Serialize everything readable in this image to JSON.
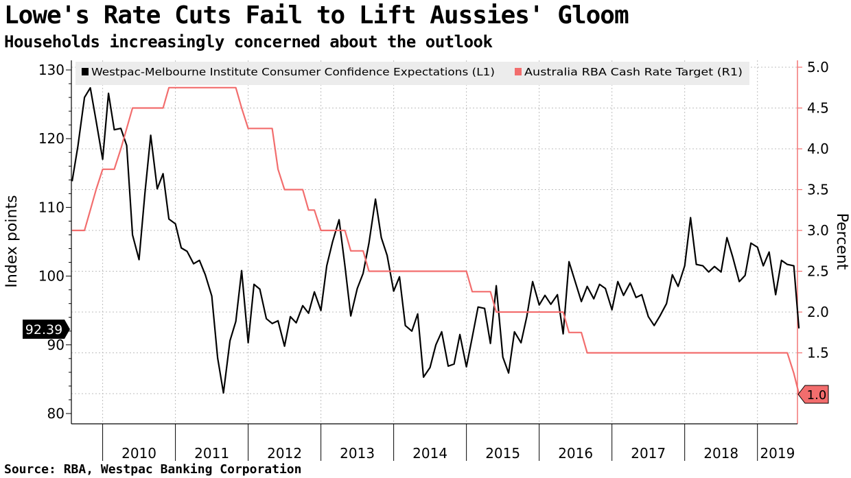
{
  "header": {
    "title": "Lowe's Rate Cuts Fail to Lift Aussies' Gloom",
    "subtitle": "Households increasingly concerned about the outlook"
  },
  "footer": {
    "source": "Source: RBA, Westpac Banking Corporation"
  },
  "colors": {
    "confidence": "#000000",
    "cash_rate": "#f26d6d",
    "grid": "#bdbdbd",
    "legend_bg": "#ececec"
  },
  "chart_data": {
    "type": "line",
    "title": "Lowe's Rate Cuts Fail to Lift Aussies' Gloom",
    "subtitle": "Households increasingly concerned about the outlook",
    "ylabel_left": "Index points",
    "ylabel_right": "Percent",
    "ylim_left": [
      78,
      130
    ],
    "ylim_right": [
      0.8,
      5.05
    ],
    "xlim": [
      2009.57,
      2019.55
    ],
    "yticks_left": [
      80,
      90,
      100,
      110,
      120,
      130
    ],
    "yticks_right": [
      "1.5",
      "2.0",
      "2.5",
      "3.0",
      "3.5",
      "4.0",
      "4.5",
      "5.0"
    ],
    "year_labels": [
      "2010",
      "2011",
      "2012",
      "2013",
      "2014",
      "2015",
      "2016",
      "2017",
      "2018",
      "2019"
    ],
    "grid": true,
    "legend_position": "top",
    "last_value_left": "92.39",
    "last_value_right": "1.0",
    "series": [
      {
        "name": "Westpac-Melbourne Institute Consumer Confidence Expectations  (L1)",
        "axis": "left",
        "points": [
          [
            2009.58,
            113.8
          ],
          [
            2009.66,
            118.9
          ],
          [
            2009.75,
            126.0
          ],
          [
            2009.83,
            127.4
          ],
          [
            2009.91,
            122.6
          ],
          [
            2010.0,
            117.0
          ],
          [
            2010.08,
            126.6
          ],
          [
            2010.16,
            121.3
          ],
          [
            2010.25,
            121.5
          ],
          [
            2010.33,
            119.0
          ],
          [
            2010.41,
            106.0
          ],
          [
            2010.5,
            102.4
          ],
          [
            2010.58,
            112.0
          ],
          [
            2010.66,
            120.5
          ],
          [
            2010.75,
            112.7
          ],
          [
            2010.83,
            114.9
          ],
          [
            2010.91,
            108.3
          ],
          [
            2011.0,
            107.6
          ],
          [
            2011.08,
            104.1
          ],
          [
            2011.16,
            103.6
          ],
          [
            2011.25,
            101.8
          ],
          [
            2011.33,
            102.3
          ],
          [
            2011.41,
            100.2
          ],
          [
            2011.5,
            97.1
          ],
          [
            2011.58,
            88.1
          ],
          [
            2011.66,
            83.0
          ],
          [
            2011.75,
            90.6
          ],
          [
            2011.83,
            93.4
          ],
          [
            2011.91,
            100.8
          ],
          [
            2012.0,
            90.3
          ],
          [
            2012.08,
            98.8
          ],
          [
            2012.16,
            98.1
          ],
          [
            2012.25,
            93.8
          ],
          [
            2012.33,
            93.1
          ],
          [
            2012.41,
            93.5
          ],
          [
            2012.5,
            89.8
          ],
          [
            2012.58,
            94.1
          ],
          [
            2012.66,
            93.2
          ],
          [
            2012.75,
            95.7
          ],
          [
            2012.83,
            94.6
          ],
          [
            2012.91,
            97.7
          ],
          [
            2013.0,
            95.0
          ],
          [
            2013.08,
            101.5
          ],
          [
            2013.16,
            105.0
          ],
          [
            2013.25,
            108.2
          ],
          [
            2013.33,
            101.5
          ],
          [
            2013.41,
            94.2
          ],
          [
            2013.5,
            98.2
          ],
          [
            2013.58,
            100.4
          ],
          [
            2013.66,
            104.8
          ],
          [
            2013.75,
            111.2
          ],
          [
            2013.83,
            105.6
          ],
          [
            2013.91,
            103.0
          ],
          [
            2014.0,
            97.8
          ],
          [
            2014.08,
            99.9
          ],
          [
            2014.16,
            92.8
          ],
          [
            2014.25,
            92.0
          ],
          [
            2014.33,
            94.5
          ],
          [
            2014.41,
            85.3
          ],
          [
            2014.5,
            86.7
          ],
          [
            2014.58,
            90.0
          ],
          [
            2014.66,
            91.9
          ],
          [
            2014.75,
            86.9
          ],
          [
            2014.83,
            87.2
          ],
          [
            2014.91,
            91.5
          ],
          [
            2015.0,
            86.8
          ],
          [
            2015.08,
            91.1
          ],
          [
            2015.16,
            95.5
          ],
          [
            2015.25,
            95.3
          ],
          [
            2015.33,
            90.2
          ],
          [
            2015.41,
            98.6
          ],
          [
            2015.5,
            88.2
          ],
          [
            2015.58,
            85.9
          ],
          [
            2015.66,
            91.9
          ],
          [
            2015.75,
            90.3
          ],
          [
            2015.83,
            94.1
          ],
          [
            2015.91,
            99.2
          ],
          [
            2016.0,
            95.8
          ],
          [
            2016.08,
            97.2
          ],
          [
            2016.16,
            95.9
          ],
          [
            2016.25,
            97.3
          ],
          [
            2016.33,
            91.6
          ],
          [
            2016.41,
            102.1
          ],
          [
            2016.5,
            99.0
          ],
          [
            2016.58,
            96.3
          ],
          [
            2016.66,
            98.5
          ],
          [
            2016.75,
            96.7
          ],
          [
            2016.83,
            98.8
          ],
          [
            2016.91,
            98.2
          ],
          [
            2017.0,
            95.1
          ],
          [
            2017.08,
            99.2
          ],
          [
            2017.16,
            97.2
          ],
          [
            2017.25,
            99.0
          ],
          [
            2017.33,
            96.9
          ],
          [
            2017.41,
            97.3
          ],
          [
            2017.5,
            94.1
          ],
          [
            2017.58,
            92.8
          ],
          [
            2017.66,
            94.2
          ],
          [
            2017.75,
            96.0
          ],
          [
            2017.83,
            100.2
          ],
          [
            2017.91,
            98.5
          ],
          [
            2018.0,
            101.5
          ],
          [
            2018.08,
            108.5
          ],
          [
            2018.16,
            101.7
          ],
          [
            2018.25,
            101.5
          ],
          [
            2018.33,
            100.6
          ],
          [
            2018.41,
            101.4
          ],
          [
            2018.5,
            100.6
          ],
          [
            2018.58,
            105.6
          ],
          [
            2018.66,
            102.8
          ],
          [
            2018.75,
            99.2
          ],
          [
            2018.83,
            100.1
          ],
          [
            2018.91,
            104.8
          ],
          [
            2019.0,
            104.2
          ],
          [
            2019.08,
            101.5
          ],
          [
            2019.16,
            103.5
          ],
          [
            2019.25,
            97.3
          ],
          [
            2019.33,
            102.3
          ],
          [
            2019.41,
            101.7
          ],
          [
            2019.5,
            101.5
          ],
          [
            2019.57,
            92.39
          ]
        ]
      },
      {
        "name": "Australia RBA Cash Rate Target  (R1)",
        "axis": "right",
        "points": [
          [
            2009.58,
            3.0
          ],
          [
            2009.75,
            3.0
          ],
          [
            2009.83,
            3.25
          ],
          [
            2009.91,
            3.5
          ],
          [
            2010.0,
            3.75
          ],
          [
            2010.16,
            3.75
          ],
          [
            2010.25,
            4.0
          ],
          [
            2010.33,
            4.25
          ],
          [
            2010.41,
            4.5
          ],
          [
            2010.83,
            4.5
          ],
          [
            2010.91,
            4.75
          ],
          [
            2011.83,
            4.75
          ],
          [
            2011.91,
            4.5
          ],
          [
            2012.0,
            4.25
          ],
          [
            2012.33,
            4.25
          ],
          [
            2012.41,
            3.75
          ],
          [
            2012.5,
            3.5
          ],
          [
            2012.75,
            3.5
          ],
          [
            2012.83,
            3.25
          ],
          [
            2012.91,
            3.25
          ],
          [
            2013.0,
            3.0
          ],
          [
            2013.33,
            3.0
          ],
          [
            2013.41,
            2.75
          ],
          [
            2013.58,
            2.75
          ],
          [
            2013.66,
            2.5
          ],
          [
            2015.0,
            2.5
          ],
          [
            2015.08,
            2.25
          ],
          [
            2015.33,
            2.25
          ],
          [
            2015.41,
            2.0
          ],
          [
            2016.33,
            2.0
          ],
          [
            2016.41,
            1.75
          ],
          [
            2016.58,
            1.75
          ],
          [
            2016.66,
            1.5
          ],
          [
            2019.41,
            1.5
          ],
          [
            2019.5,
            1.25
          ],
          [
            2019.57,
            1.0
          ]
        ]
      }
    ]
  }
}
